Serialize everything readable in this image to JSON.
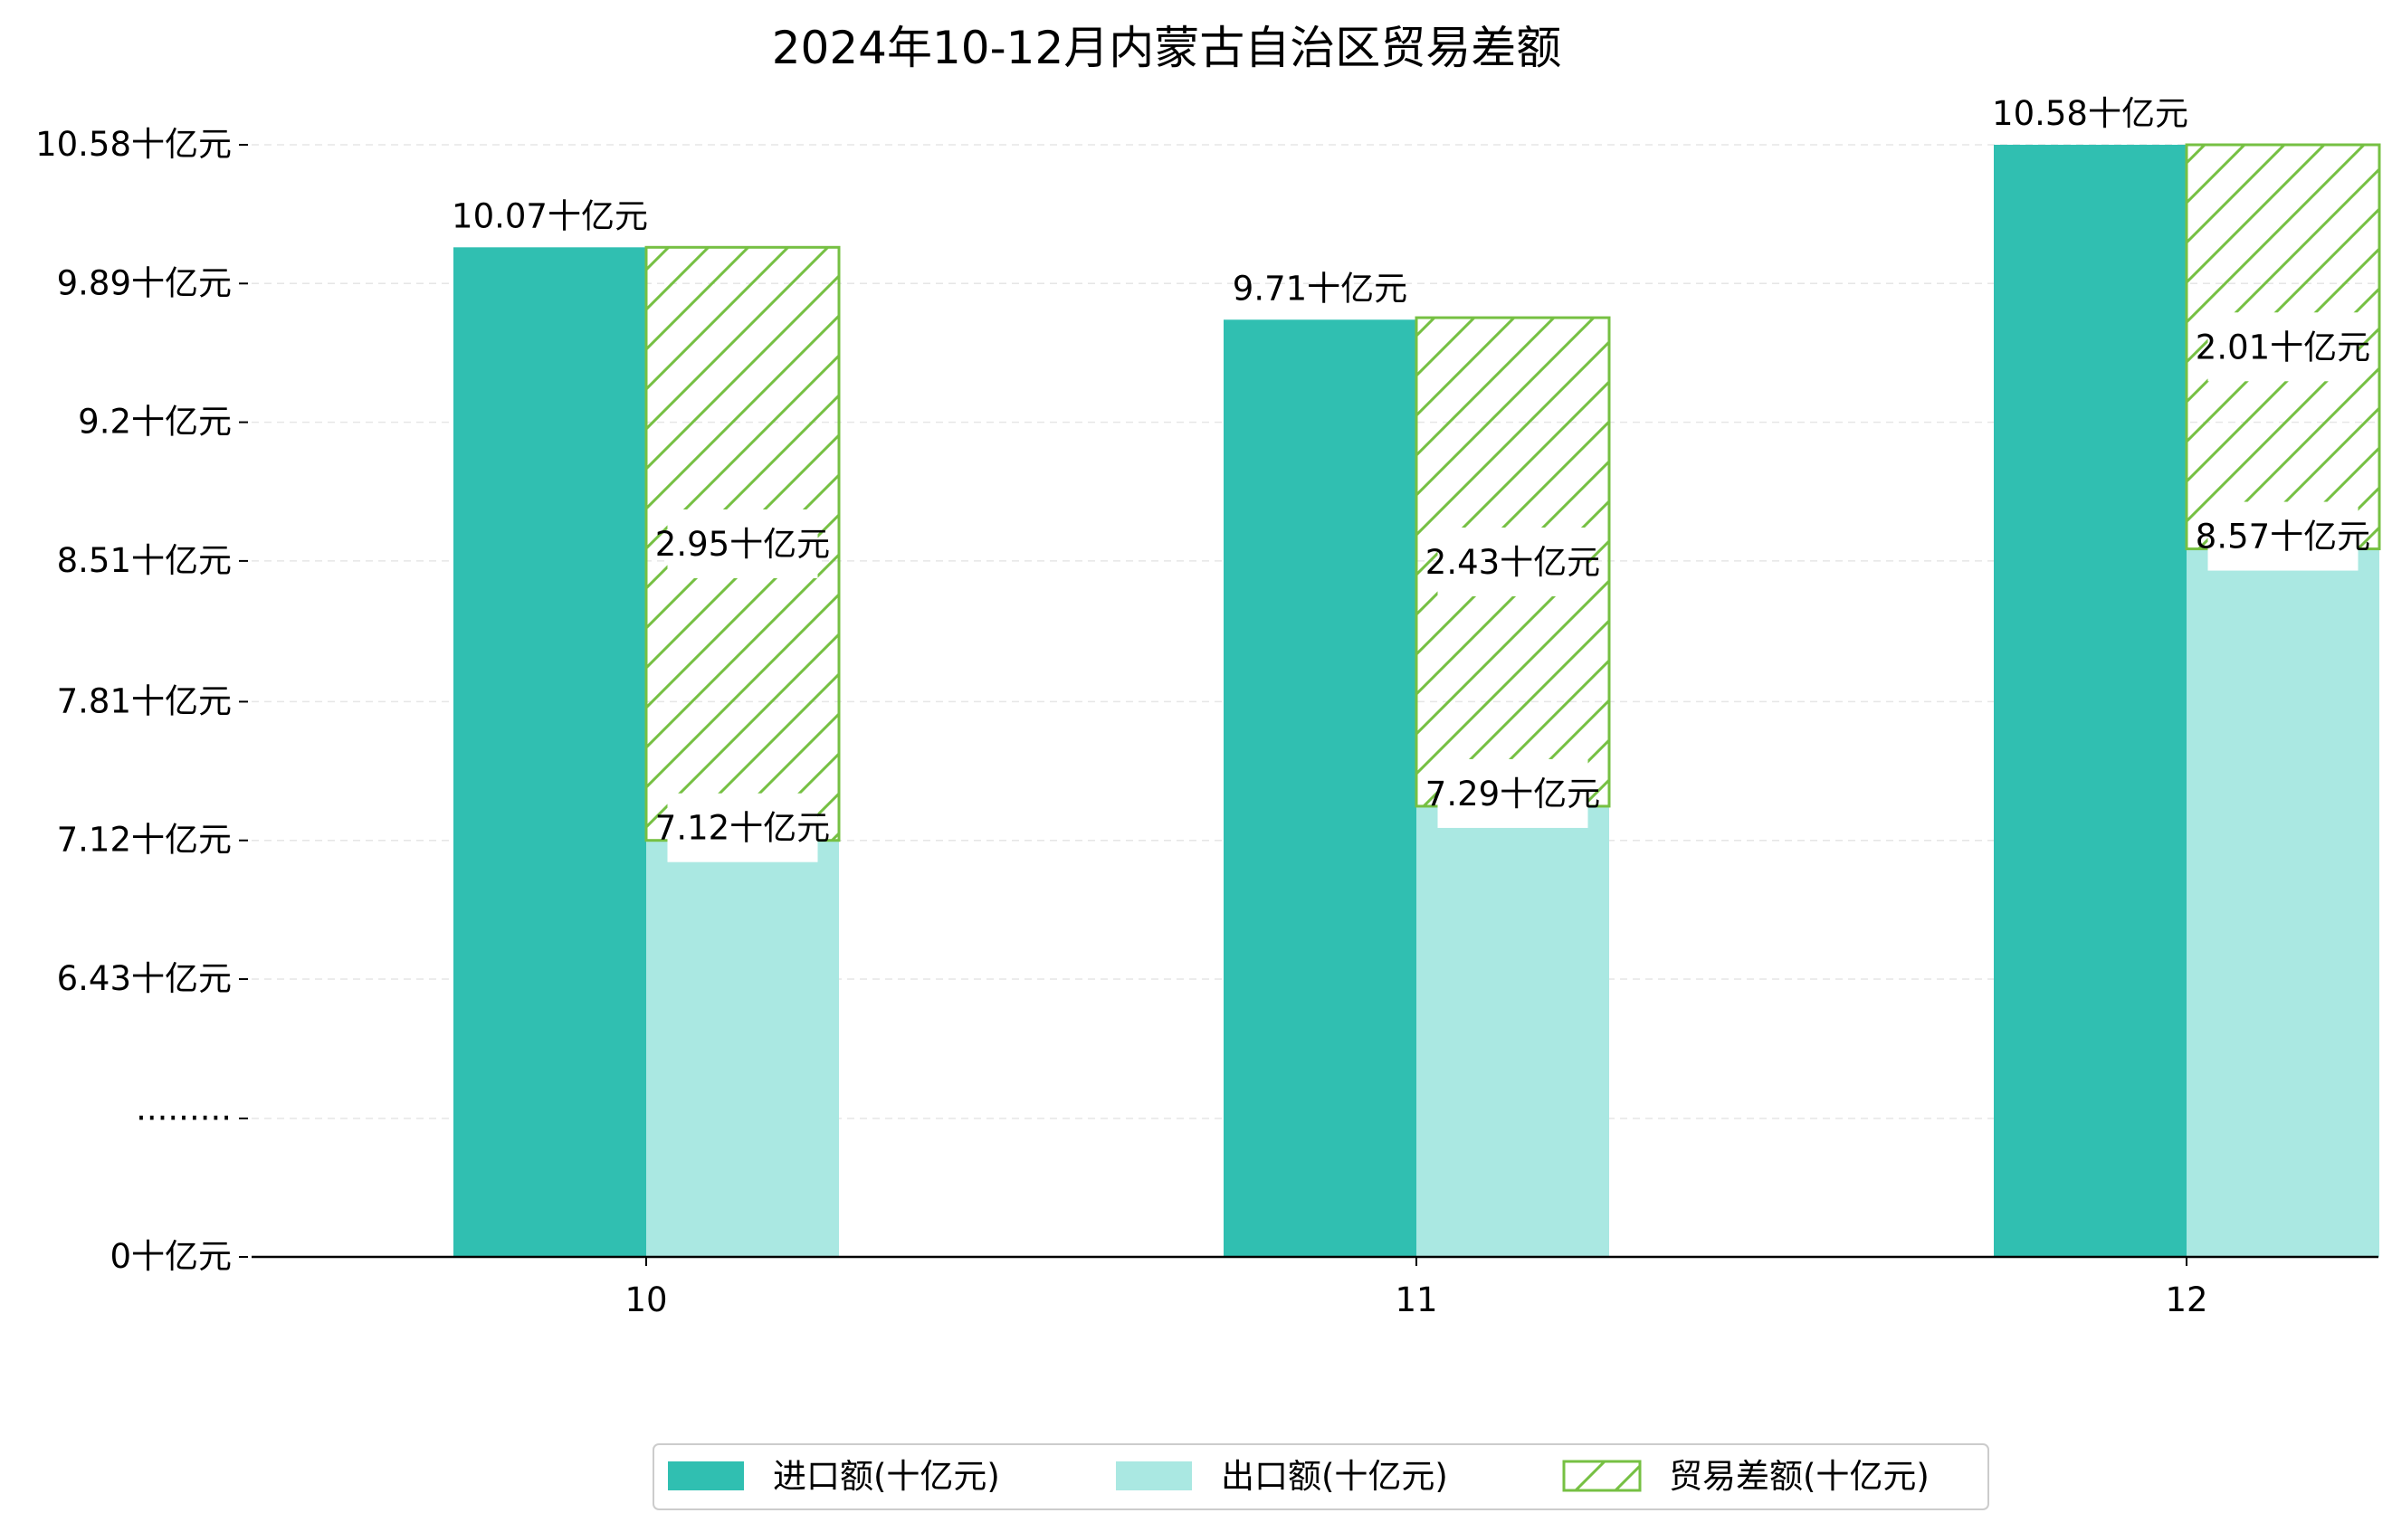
{
  "chart_data": {
    "type": "bar",
    "title": "2024年10-12月内蒙古自治区贸易差额",
    "categories": [
      "10",
      "11",
      "12"
    ],
    "unit": "十亿元",
    "series": [
      {
        "name": "进口额(十亿元)",
        "values": [
          10.07,
          9.71,
          10.58
        ],
        "labels": [
          "10.07十亿元",
          "9.71十亿元",
          "10.58十亿元"
        ],
        "color": "#30bfb1"
      },
      {
        "name": "出口额(十亿元)",
        "values": [
          7.12,
          7.29,
          8.57
        ],
        "labels": [
          "7.12十亿元",
          "7.29十亿元",
          "8.57十亿元"
        ],
        "color": "#aae8e2"
      },
      {
        "name": "贸易差额(十亿元)",
        "values": [
          2.95,
          2.43,
          2.01
        ],
        "labels": [
          "2.95十亿元",
          "2.43十亿元",
          "2.01十亿元"
        ],
        "color": "#76c043",
        "pattern": "hatch"
      }
    ],
    "y_ticks": [
      "0十亿元",
      "·········",
      "6.43十亿元",
      "7.12十亿元",
      "7.81十亿元",
      "8.51十亿元",
      "9.2十亿元",
      "9.89十亿元",
      "10.58十亿元"
    ],
    "y_tick_values": [
      0,
      null,
      6.43,
      7.12,
      7.81,
      8.51,
      9.2,
      9.89,
      10.58
    ],
    "y_axis_break": true,
    "grid": "horizontal dashed",
    "legend_position": "bottom-center"
  }
}
